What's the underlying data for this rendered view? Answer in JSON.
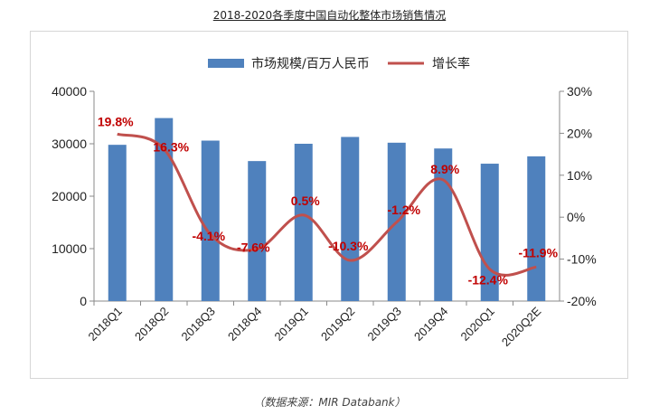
{
  "page": {
    "title": "2018-2020各季度中国自动化整体市场销售情况",
    "source": "（数据来源：MIR Databank）"
  },
  "colors": {
    "bar": "#4F81BD",
    "line": "#C0504D",
    "label": "#C00000",
    "axis": "#888888",
    "text": "#222222"
  },
  "chart_data": {
    "type": "bar",
    "categories": [
      "2018Q1",
      "2018Q2",
      "2018Q3",
      "2018Q4",
      "2019Q1",
      "2019Q2",
      "2019Q3",
      "2019Q4",
      "2020Q1",
      "2020Q2E"
    ],
    "series": [
      {
        "name": "市场规模/百万人民币",
        "type": "bar",
        "axis": "left",
        "values": [
          29800,
          34900,
          30600,
          26700,
          30000,
          31300,
          30200,
          29100,
          26200,
          27600
        ]
      },
      {
        "name": "增长率",
        "type": "line",
        "axis": "right",
        "values": [
          19.8,
          16.3,
          -4.1,
          -7.6,
          0.5,
          -10.3,
          -1.2,
          8.9,
          -12.4,
          -11.9
        ],
        "labels": [
          "19.8%",
          "16.3%",
          "-4.1%",
          "-7.6%",
          "0.5%",
          "-10.3%",
          "-1.2%",
          "8.9%",
          "-12.4%",
          "-11.9%"
        ]
      }
    ],
    "y_left": {
      "min": 0,
      "max": 40000,
      "ticks": [
        "0",
        "10000",
        "20000",
        "30000",
        "40000"
      ]
    },
    "y_right": {
      "min": -20,
      "max": 30,
      "ticks": [
        "-20%",
        "-10%",
        "0%",
        "10%",
        "20%",
        "30%"
      ]
    },
    "legend": {
      "position": "top"
    },
    "grid": false
  }
}
